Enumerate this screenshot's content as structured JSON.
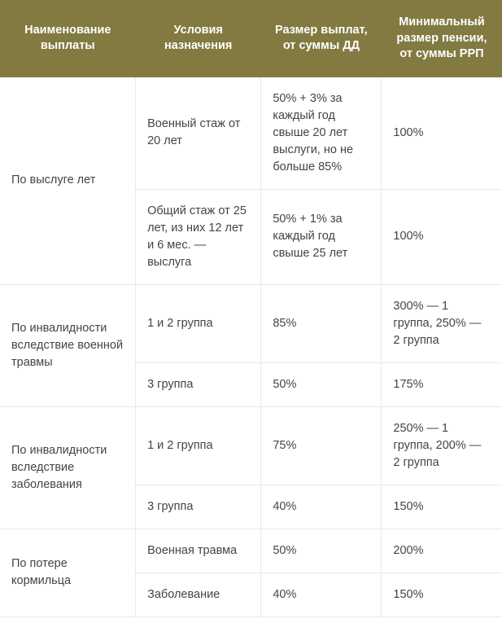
{
  "table": {
    "header_bg": "#827a41",
    "header_color": "#ffffff",
    "border_color": "#e8e8e8",
    "text_color": "#444444",
    "font_size": 14.5,
    "columns": [
      "Наименование выплаты",
      "Условия назначения",
      "Размер выплат, от суммы ДД",
      "Минимальный размер пенсии, от суммы РРП"
    ],
    "groups": [
      {
        "name": "По выслуге лет",
        "rows": [
          {
            "cond": "Военный стаж от 20 лет",
            "size": "50% + 3% за каждый год свыше 20 лет выслуги, но не больше 85%",
            "min": "100%"
          },
          {
            "cond": "Общий стаж от 25 лет, из них 12 лет и 6 мес. — выслуга",
            "size": "50% + 1% за каждый год свыше 25 лет",
            "min": "100%"
          }
        ]
      },
      {
        "name": "По инвалидности вследствие военной травмы",
        "rows": [
          {
            "cond": "1 и 2 группа",
            "size": "85%",
            "min": "300% — 1 группа, 250% — 2 группа"
          },
          {
            "cond": "3 группа",
            "size": "50%",
            "min": "175%"
          }
        ]
      },
      {
        "name": "По инвалидности вследствие заболевания",
        "rows": [
          {
            "cond": "1 и 2 группа",
            "size": "75%",
            "min": "250% — 1 группа, 200% — 2 группа"
          },
          {
            "cond": "3 группа",
            "size": "40%",
            "min": "150%"
          }
        ]
      },
      {
        "name": "По потере кормильца",
        "rows": [
          {
            "cond": "Военная травма",
            "size": "50%",
            "min": "200%"
          },
          {
            "cond": "Заболевание",
            "size": "40%",
            "min": "150%"
          }
        ]
      }
    ]
  }
}
